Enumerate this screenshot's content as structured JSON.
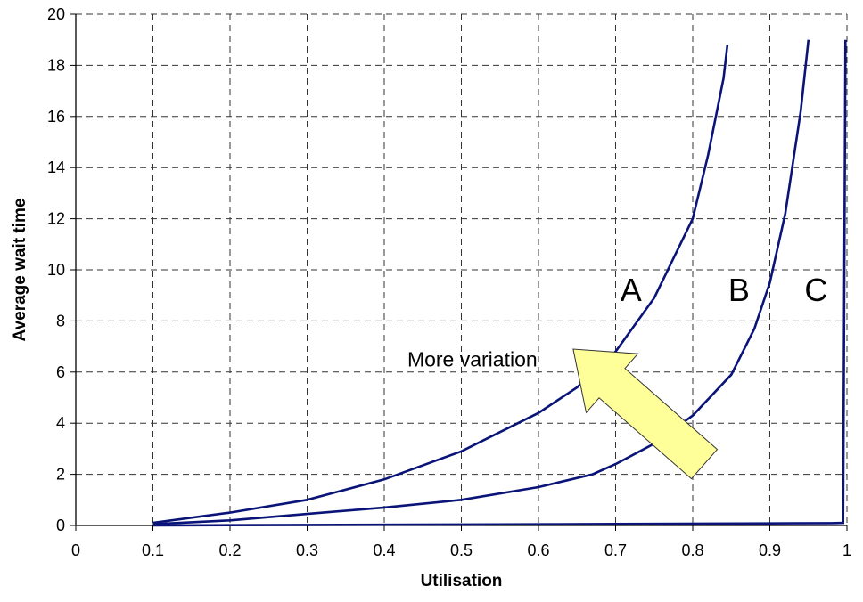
{
  "chart_data": {
    "type": "line",
    "title": "",
    "xlabel": "Utilisation",
    "ylabel": "Average wait time",
    "xlim": [
      0,
      1
    ],
    "ylim": [
      0,
      20
    ],
    "x_ticks": [
      0,
      0.1,
      0.2,
      0.3,
      0.4,
      0.5,
      0.6,
      0.7,
      0.8,
      0.9,
      1
    ],
    "x_tick_labels": [
      "0",
      "0.1",
      "0.2",
      "0.3",
      "0.4",
      "0.5",
      "0.6",
      "0.7",
      "0.8",
      "0.9",
      "1"
    ],
    "y_ticks": [
      0,
      2,
      4,
      6,
      8,
      10,
      12,
      14,
      16,
      18,
      20
    ],
    "y_tick_labels": [
      "0",
      "2",
      "4",
      "6",
      "8",
      "10",
      "12",
      "14",
      "16",
      "18",
      "20"
    ],
    "grid": true,
    "line_color": "#0a1478",
    "series": [
      {
        "name": "A",
        "x": [
          0.1,
          0.2,
          0.3,
          0.4,
          0.5,
          0.6,
          0.65,
          0.7,
          0.75,
          0.8,
          0.82,
          0.84,
          0.845
        ],
        "y": [
          0.1,
          0.5,
          1.0,
          1.8,
          2.9,
          4.4,
          5.4,
          6.8,
          8.9,
          12.0,
          14.5,
          17.5,
          18.8
        ]
      },
      {
        "name": "B",
        "x": [
          0.1,
          0.2,
          0.3,
          0.4,
          0.5,
          0.6,
          0.67,
          0.7,
          0.75,
          0.8,
          0.85,
          0.88,
          0.9,
          0.92,
          0.94,
          0.95
        ],
        "y": [
          0.05,
          0.2,
          0.45,
          0.7,
          1.0,
          1.5,
          2.0,
          2.4,
          3.2,
          4.3,
          5.9,
          7.7,
          9.5,
          12.2,
          16.2,
          19.0
        ]
      },
      {
        "name": "C",
        "x": [
          0.1,
          0.3,
          0.5,
          0.7,
          0.9,
          0.98,
          0.995,
          0.998
        ],
        "y": [
          0.0,
          0.02,
          0.04,
          0.06,
          0.08,
          0.09,
          0.1,
          19.0
        ]
      }
    ],
    "annotations": [
      {
        "text": "A",
        "x": 0.72,
        "y": 9.2
      },
      {
        "text": "B",
        "x": 0.86,
        "y": 9.2
      },
      {
        "text": "C",
        "x": 0.96,
        "y": 9.2
      },
      {
        "text": "More variation",
        "x": 0.43,
        "y": 6.5
      }
    ],
    "arrow": {
      "from": [
        0.815,
        2.4
      ],
      "to": [
        0.645,
        6.9
      ],
      "direction": "up-left",
      "fill": "#ffff99",
      "stroke": "#333333"
    }
  }
}
